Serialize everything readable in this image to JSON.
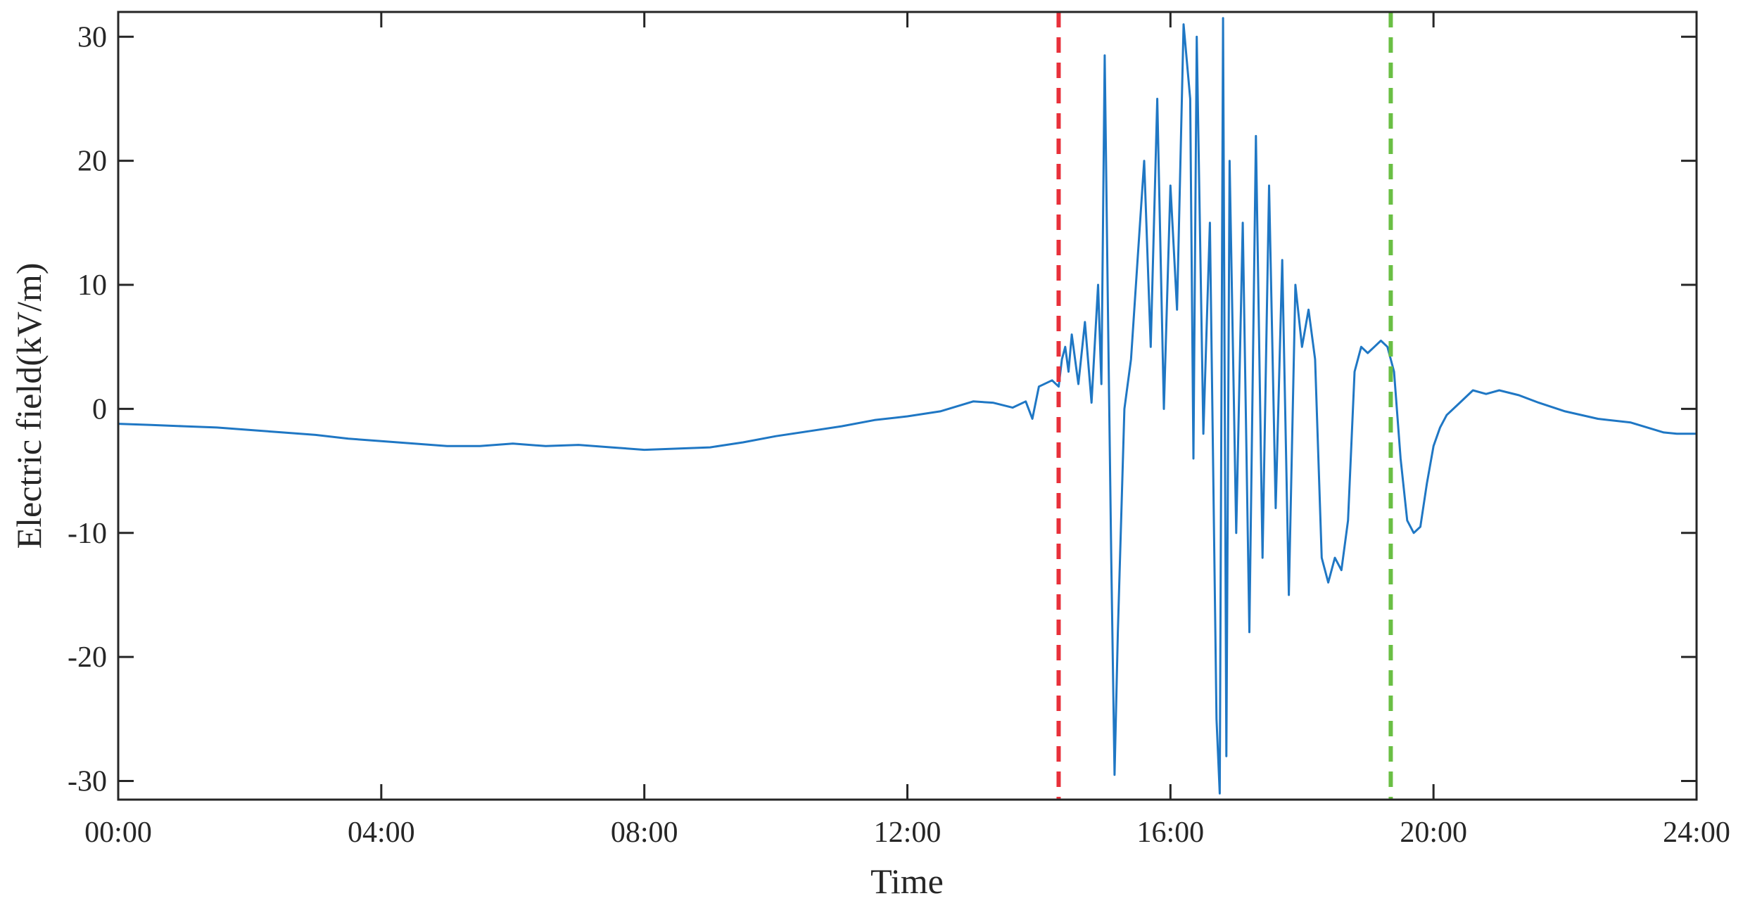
{
  "chart_data": {
    "type": "line",
    "title": "",
    "xlabel": "Time",
    "ylabel": "Electric field(kV/m)",
    "x_unit": "hours",
    "xlim": [
      0,
      24
    ],
    "ylim": [
      -31.5,
      32
    ],
    "x_ticks": [
      {
        "value": 0,
        "label": "00:00"
      },
      {
        "value": 4,
        "label": "04:00"
      },
      {
        "value": 8,
        "label": "08:00"
      },
      {
        "value": 12,
        "label": "12:00"
      },
      {
        "value": 16,
        "label": "16:00"
      },
      {
        "value": 20,
        "label": "20:00"
      },
      {
        "value": 24,
        "label": "24:00"
      }
    ],
    "y_ticks": [
      {
        "value": 30,
        "label": "30"
      },
      {
        "value": 20,
        "label": "20"
      },
      {
        "value": 10,
        "label": "10"
      },
      {
        "value": 0,
        "label": "0"
      },
      {
        "value": -10,
        "label": "-10"
      },
      {
        "value": -20,
        "label": "-20"
      },
      {
        "value": -30,
        "label": "-30"
      }
    ],
    "grid": false,
    "legend": "none",
    "series": [
      {
        "color": "#1f77c4",
        "x": [
          0,
          0.5,
          1,
          1.5,
          2,
          2.5,
          3,
          3.5,
          4,
          4.5,
          5,
          5.5,
          6,
          6.5,
          7,
          7.5,
          8,
          8.5,
          9,
          9.5,
          10,
          10.5,
          11,
          11.5,
          12,
          12.5,
          13,
          13.3,
          13.6,
          13.8,
          13.9,
          14.0,
          14.2,
          14.3,
          14.35,
          14.4,
          14.45,
          14.5,
          14.6,
          14.7,
          14.8,
          14.9,
          14.95,
          15.0,
          15.05,
          15.1,
          15.15,
          15.2,
          15.3,
          15.4,
          15.5,
          15.6,
          15.7,
          15.8,
          15.9,
          16.0,
          16.1,
          16.2,
          16.3,
          16.35,
          16.4,
          16.5,
          16.6,
          16.7,
          16.75,
          16.8,
          16.85,
          16.9,
          17.0,
          17.1,
          17.2,
          17.3,
          17.4,
          17.5,
          17.6,
          17.7,
          17.8,
          17.9,
          18.0,
          18.1,
          18.2,
          18.3,
          18.4,
          18.5,
          18.6,
          18.7,
          18.8,
          18.9,
          19.0,
          19.1,
          19.2,
          19.3,
          19.4,
          19.5,
          19.6,
          19.7,
          19.8,
          19.9,
          20.0,
          20.1,
          20.2,
          20.4,
          20.6,
          20.8,
          21.0,
          21.3,
          21.6,
          22.0,
          22.5,
          23.0,
          23.5,
          23.7,
          24.0
        ],
        "y": [
          -1.2,
          -1.3,
          -1.4,
          -1.5,
          -1.7,
          -1.9,
          -2.1,
          -2.4,
          -2.6,
          -2.8,
          -3.0,
          -3.0,
          -2.8,
          -3.0,
          -2.9,
          -3.1,
          -3.3,
          -3.2,
          -3.1,
          -2.7,
          -2.2,
          -1.8,
          -1.4,
          -0.9,
          -0.6,
          -0.2,
          0.6,
          0.5,
          0.1,
          0.6,
          -0.8,
          1.8,
          2.3,
          1.8,
          4.0,
          5.0,
          3.0,
          6.0,
          2.0,
          7.0,
          0.5,
          10.0,
          2.0,
          28.5,
          8.0,
          -12.0,
          -29.5,
          -18.0,
          0.0,
          4.0,
          12.0,
          20.0,
          5.0,
          25.0,
          0.0,
          18.0,
          8.0,
          31.0,
          25.0,
          -4.0,
          30.0,
          -2.0,
          15.0,
          -25.0,
          -31.0,
          31.5,
          -28.0,
          20.0,
          -10.0,
          15.0,
          -18.0,
          22.0,
          -12.0,
          18.0,
          -8.0,
          12.0,
          -15.0,
          10.0,
          5.0,
          8.0,
          4.0,
          -12.0,
          -14.0,
          -12.0,
          -13.0,
          -9.0,
          3.0,
          5.0,
          4.5,
          5.0,
          5.5,
          5.0,
          3.0,
          -4.0,
          -9.0,
          -10.0,
          -9.5,
          -6.0,
          -3.0,
          -1.5,
          -0.5,
          0.5,
          1.5,
          1.2,
          1.5,
          1.1,
          0.5,
          -0.2,
          -0.8,
          -1.1,
          -1.9,
          -2.0,
          -2.0
        ]
      }
    ],
    "annotations": [
      {
        "type": "vertical-dashed-line",
        "x": 14.3,
        "color": "#e8303a"
      },
      {
        "type": "vertical-dashed-line",
        "x": 19.35,
        "color": "#6abf44"
      }
    ]
  }
}
